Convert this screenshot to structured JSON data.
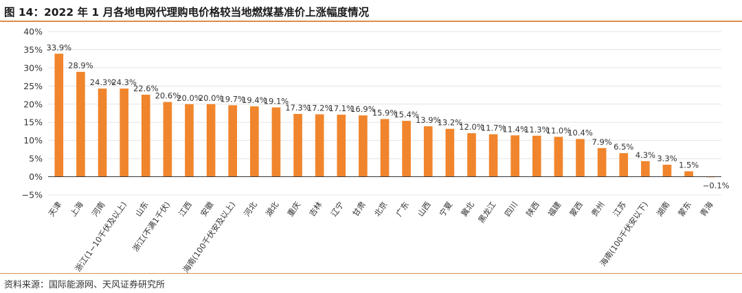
{
  "header": {
    "title": "图 14：2022 年 1 月各地电网代理购电价格较当地燃煤基准价上涨幅度情况"
  },
  "footer": {
    "source": "资料来源：国际能源网、天风证券研究所"
  },
  "colors": {
    "bar": "#F0852D",
    "rule": "#D98B4A",
    "grid": "#E3E3E3",
    "axis": "#333333"
  },
  "chart_data": {
    "type": "bar",
    "title": "",
    "xlabel": "",
    "ylabel": "",
    "ylim": [
      -5,
      40
    ],
    "y_ticks": [
      -5,
      0,
      5,
      10,
      15,
      20,
      25,
      30,
      35,
      40
    ],
    "y_tick_labels": [
      "−5%",
      "0%",
      "5%",
      "10%",
      "15%",
      "20%",
      "25%",
      "30%",
      "35%",
      "40%"
    ],
    "grid": true,
    "legend": "none",
    "categories": [
      "天津",
      "上海",
      "河南",
      "浙江(1−10千伏及以上)",
      "山东",
      "浙江(不满1千伏)",
      "江西",
      "安徽",
      "海南(100千伏安及以上)",
      "河北",
      "湖北",
      "重庆",
      "吉林",
      "辽宁",
      "甘肃",
      "北京",
      "广东",
      "山西",
      "宁夏",
      "冀北",
      "黑龙江",
      "四川",
      "陕西",
      "福建",
      "蒙西",
      "贵州",
      "江苏",
      "海南(100千伏安以下)",
      "湖南",
      "蒙东",
      "青海"
    ],
    "values": [
      33.9,
      28.9,
      24.3,
      24.3,
      22.6,
      20.6,
      20.0,
      20.0,
      19.7,
      19.4,
      19.1,
      17.3,
      17.2,
      17.1,
      16.9,
      15.9,
      15.4,
      13.9,
      13.2,
      12.0,
      11.7,
      11.4,
      11.3,
      11.0,
      10.4,
      7.9,
      6.5,
      4.3,
      3.3,
      1.5,
      -0.1
    ],
    "data_labels": [
      "33.9%",
      "28.9%",
      "24.3%",
      "24.3%",
      "22.6%",
      "20.6%",
      "20.0%",
      "20.0%",
      "19.7%",
      "19.4%",
      "19.1%",
      "17.3%",
      "17.2%",
      "17.1%",
      "16.9%",
      "15.9%",
      "15.4%",
      "13.9%",
      "13.2%",
      "12.0%",
      "11.7%",
      "11.4%",
      "11.3%",
      "11.0%",
      "10.4%",
      "7.9%",
      "6.5%",
      "4.3%",
      "3.3%",
      "1.5%",
      "−0.1%"
    ]
  }
}
